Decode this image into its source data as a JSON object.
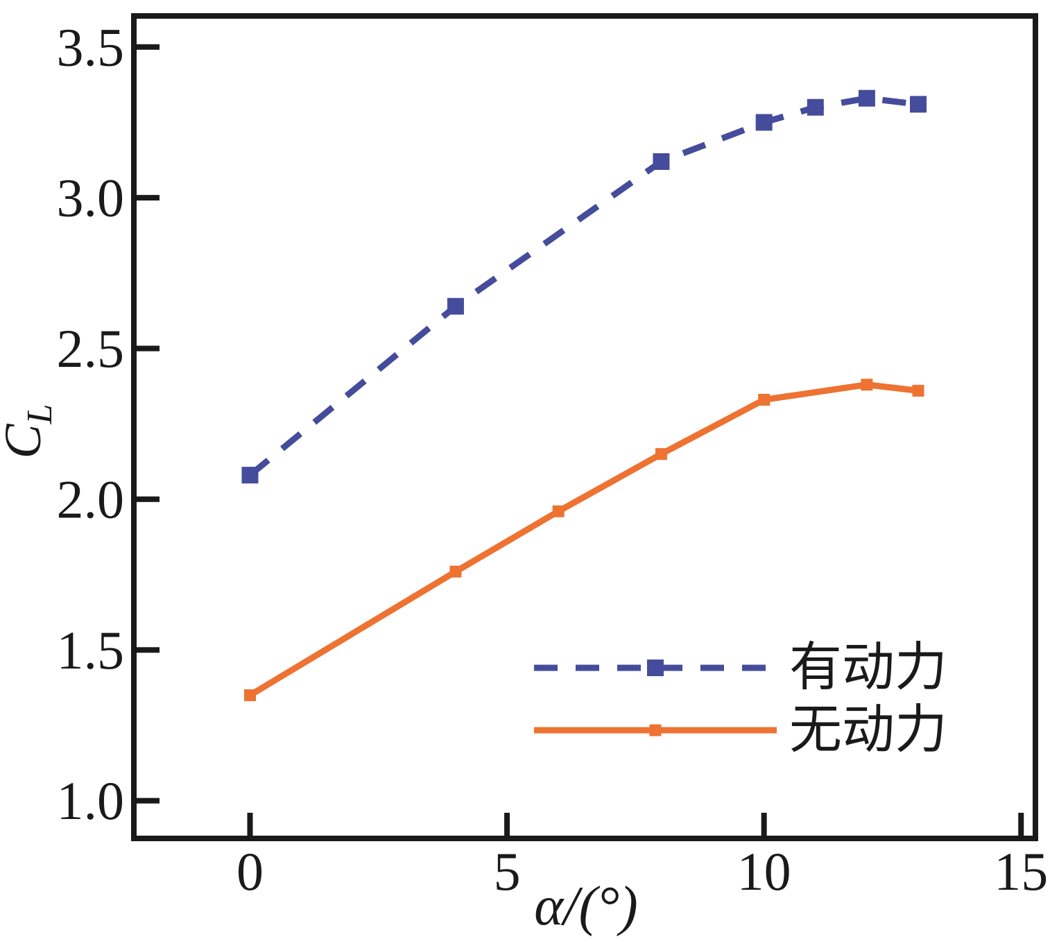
{
  "figure": {
    "background": "#ffffff",
    "axis_color": "#1a1a1a"
  },
  "chart_data": {
    "type": "line",
    "title": "",
    "xlabel": "α/(°)",
    "ylabel": "C_L",
    "ylabel_main": "C",
    "ylabel_sub": "L",
    "xlim": [
      -2.26,
      15.28
    ],
    "ylim": [
      0.875,
      3.603
    ],
    "x_ticks": [
      0,
      5,
      10,
      15
    ],
    "x_tick_labels": [
      "0",
      "5",
      "10",
      "15"
    ],
    "y_ticks": [
      1.0,
      1.5,
      2.0,
      2.5,
      3.0,
      3.5
    ],
    "y_tick_labels": [
      "1.0",
      "1.5",
      "2.0",
      "2.5",
      "3.0",
      "3.5"
    ],
    "grid": false,
    "legend_position": "inside lower right",
    "series": [
      {
        "name": "有动力",
        "color": "#454C9B",
        "line_style": "dashed",
        "marker": "square",
        "marker_size": 24,
        "x": [
          0,
          4,
          8,
          10,
          11,
          12,
          13
        ],
        "y": [
          2.08,
          2.64,
          3.12,
          3.25,
          3.3,
          3.33,
          3.31
        ]
      },
      {
        "name": "无动力",
        "color": "#EE7231",
        "line_style": "solid",
        "marker": "square",
        "marker_size": 17,
        "x": [
          0,
          4,
          6,
          8,
          10,
          12,
          13
        ],
        "y": [
          1.35,
          1.76,
          1.96,
          2.15,
          2.33,
          2.38,
          2.36
        ]
      }
    ]
  }
}
